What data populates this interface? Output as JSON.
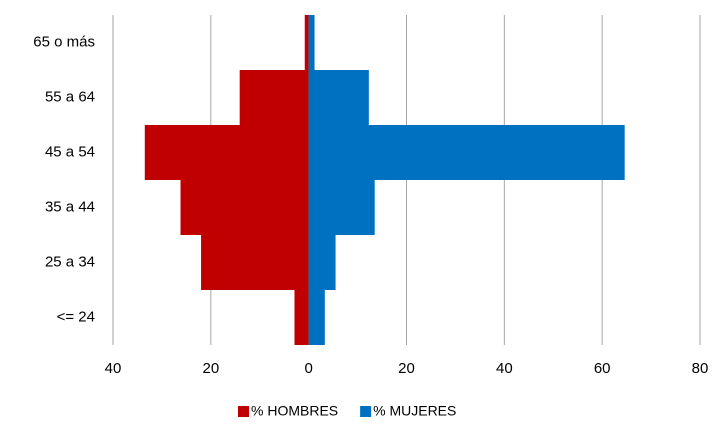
{
  "chart_data": {
    "type": "pyramid",
    "categories": [
      "<= 24",
      "25 a 34",
      "35 a 44",
      "45 a 54",
      "55 a 64",
      "65 o más"
    ],
    "series": [
      {
        "name": "% HOMBRES",
        "color": "#c00000",
        "values": [
          -2.9,
          -22,
          -26.2,
          -33.5,
          -14.1,
          -0.8
        ]
      },
      {
        "name": "% MUJERES",
        "color": "#0070c0",
        "values": [
          3.3,
          5.5,
          13.5,
          64.6,
          12.3,
          1.2
        ]
      }
    ],
    "xlim": [
      -40,
      80
    ],
    "xticks": [
      {
        "value": -40,
        "label": "40"
      },
      {
        "value": -20,
        "label": "20"
      },
      0,
      20,
      40,
      60,
      80
    ],
    "grid": true
  }
}
